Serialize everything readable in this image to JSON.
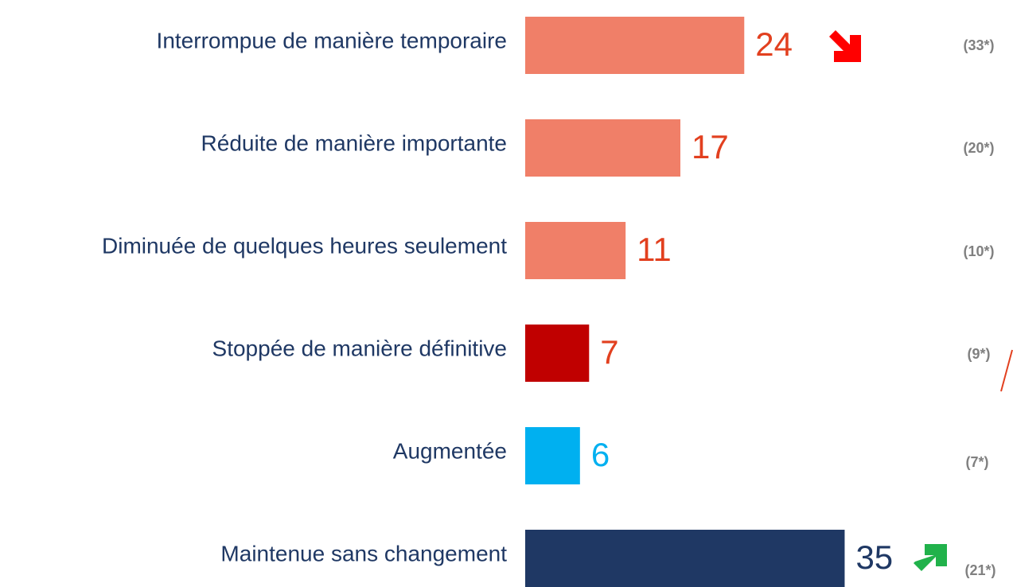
{
  "chart_data": {
    "type": "bar",
    "categories": [
      "Interrompue de manière temporaire",
      "Réduite de manière importante",
      "Diminuée de quelques heures seulement",
      "Stoppée de manière définitive",
      "Augmentée",
      "Maintenue sans changement"
    ],
    "values": [
      24,
      17,
      11,
      7,
      6,
      35
    ],
    "colors": [
      "#f07f68",
      "#f07f68",
      "#f07f68",
      "#c00000",
      "#00b0f0",
      "#1f3864"
    ],
    "label_colors": [
      "#e2401f",
      "#e2401f",
      "#e2401f",
      "#e2401f",
      "#00b0f0",
      "#1f3864"
    ],
    "comparisons": [
      "(33*)",
      "(20*)",
      "(10*)",
      "(9*)",
      "(7*)",
      "(21*)"
    ]
  }
}
